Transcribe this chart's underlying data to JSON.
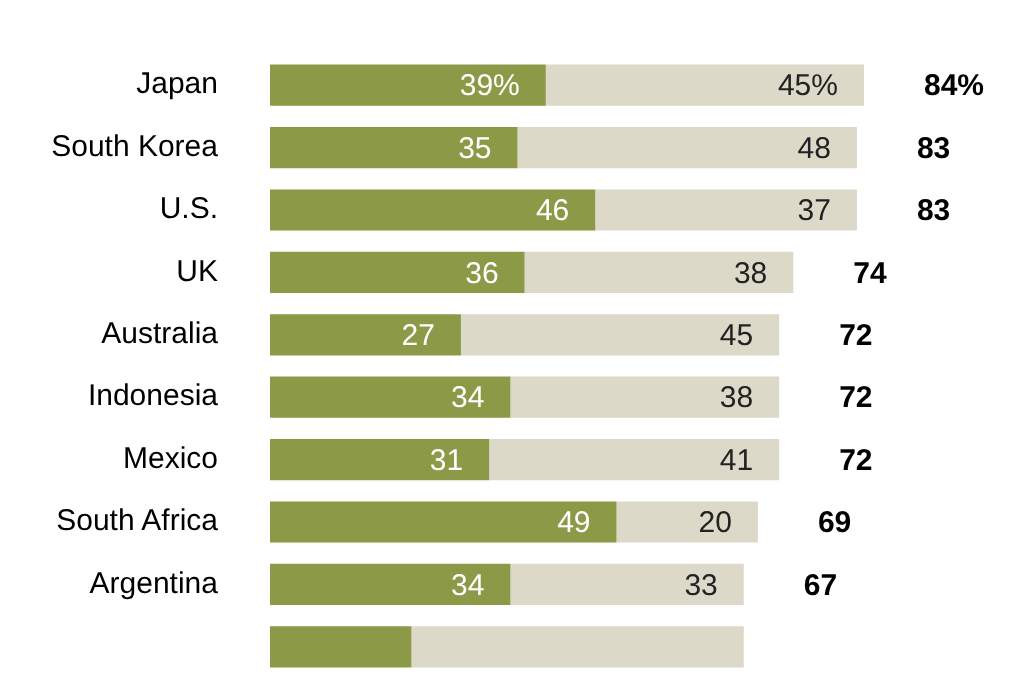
{
  "chart_data": {
    "type": "bar",
    "orientation": "horizontal",
    "stacked": true,
    "tick_labels": "y",
    "legend": false,
    "categories": [
      "Japan",
      "South Korea",
      "U.S.",
      "UK",
      "Australia",
      "Indonesia",
      "Mexico",
      "South Africa",
      "Argentina",
      null
    ],
    "series": [
      {
        "color": "#8c9a47",
        "values": [
          39,
          35,
          46,
          36,
          27,
          34,
          31,
          49,
          34,
          20
        ],
        "value_labels": [
          "39%",
          "35",
          "46",
          "36",
          "27",
          "34",
          "31",
          "49",
          "34",
          null
        ]
      },
      {
        "color": "#dcd9c9",
        "values": [
          45,
          48,
          37,
          38,
          45,
          38,
          41,
          20,
          33,
          47
        ],
        "value_labels": [
          "45%",
          "48",
          "37",
          "38",
          "45",
          "38",
          "41",
          "20",
          "33",
          null
        ]
      }
    ],
    "totals": [
      "84%",
      "83",
      "83",
      "74",
      "72",
      "72",
      "72",
      "69",
      "67",
      null
    ]
  }
}
